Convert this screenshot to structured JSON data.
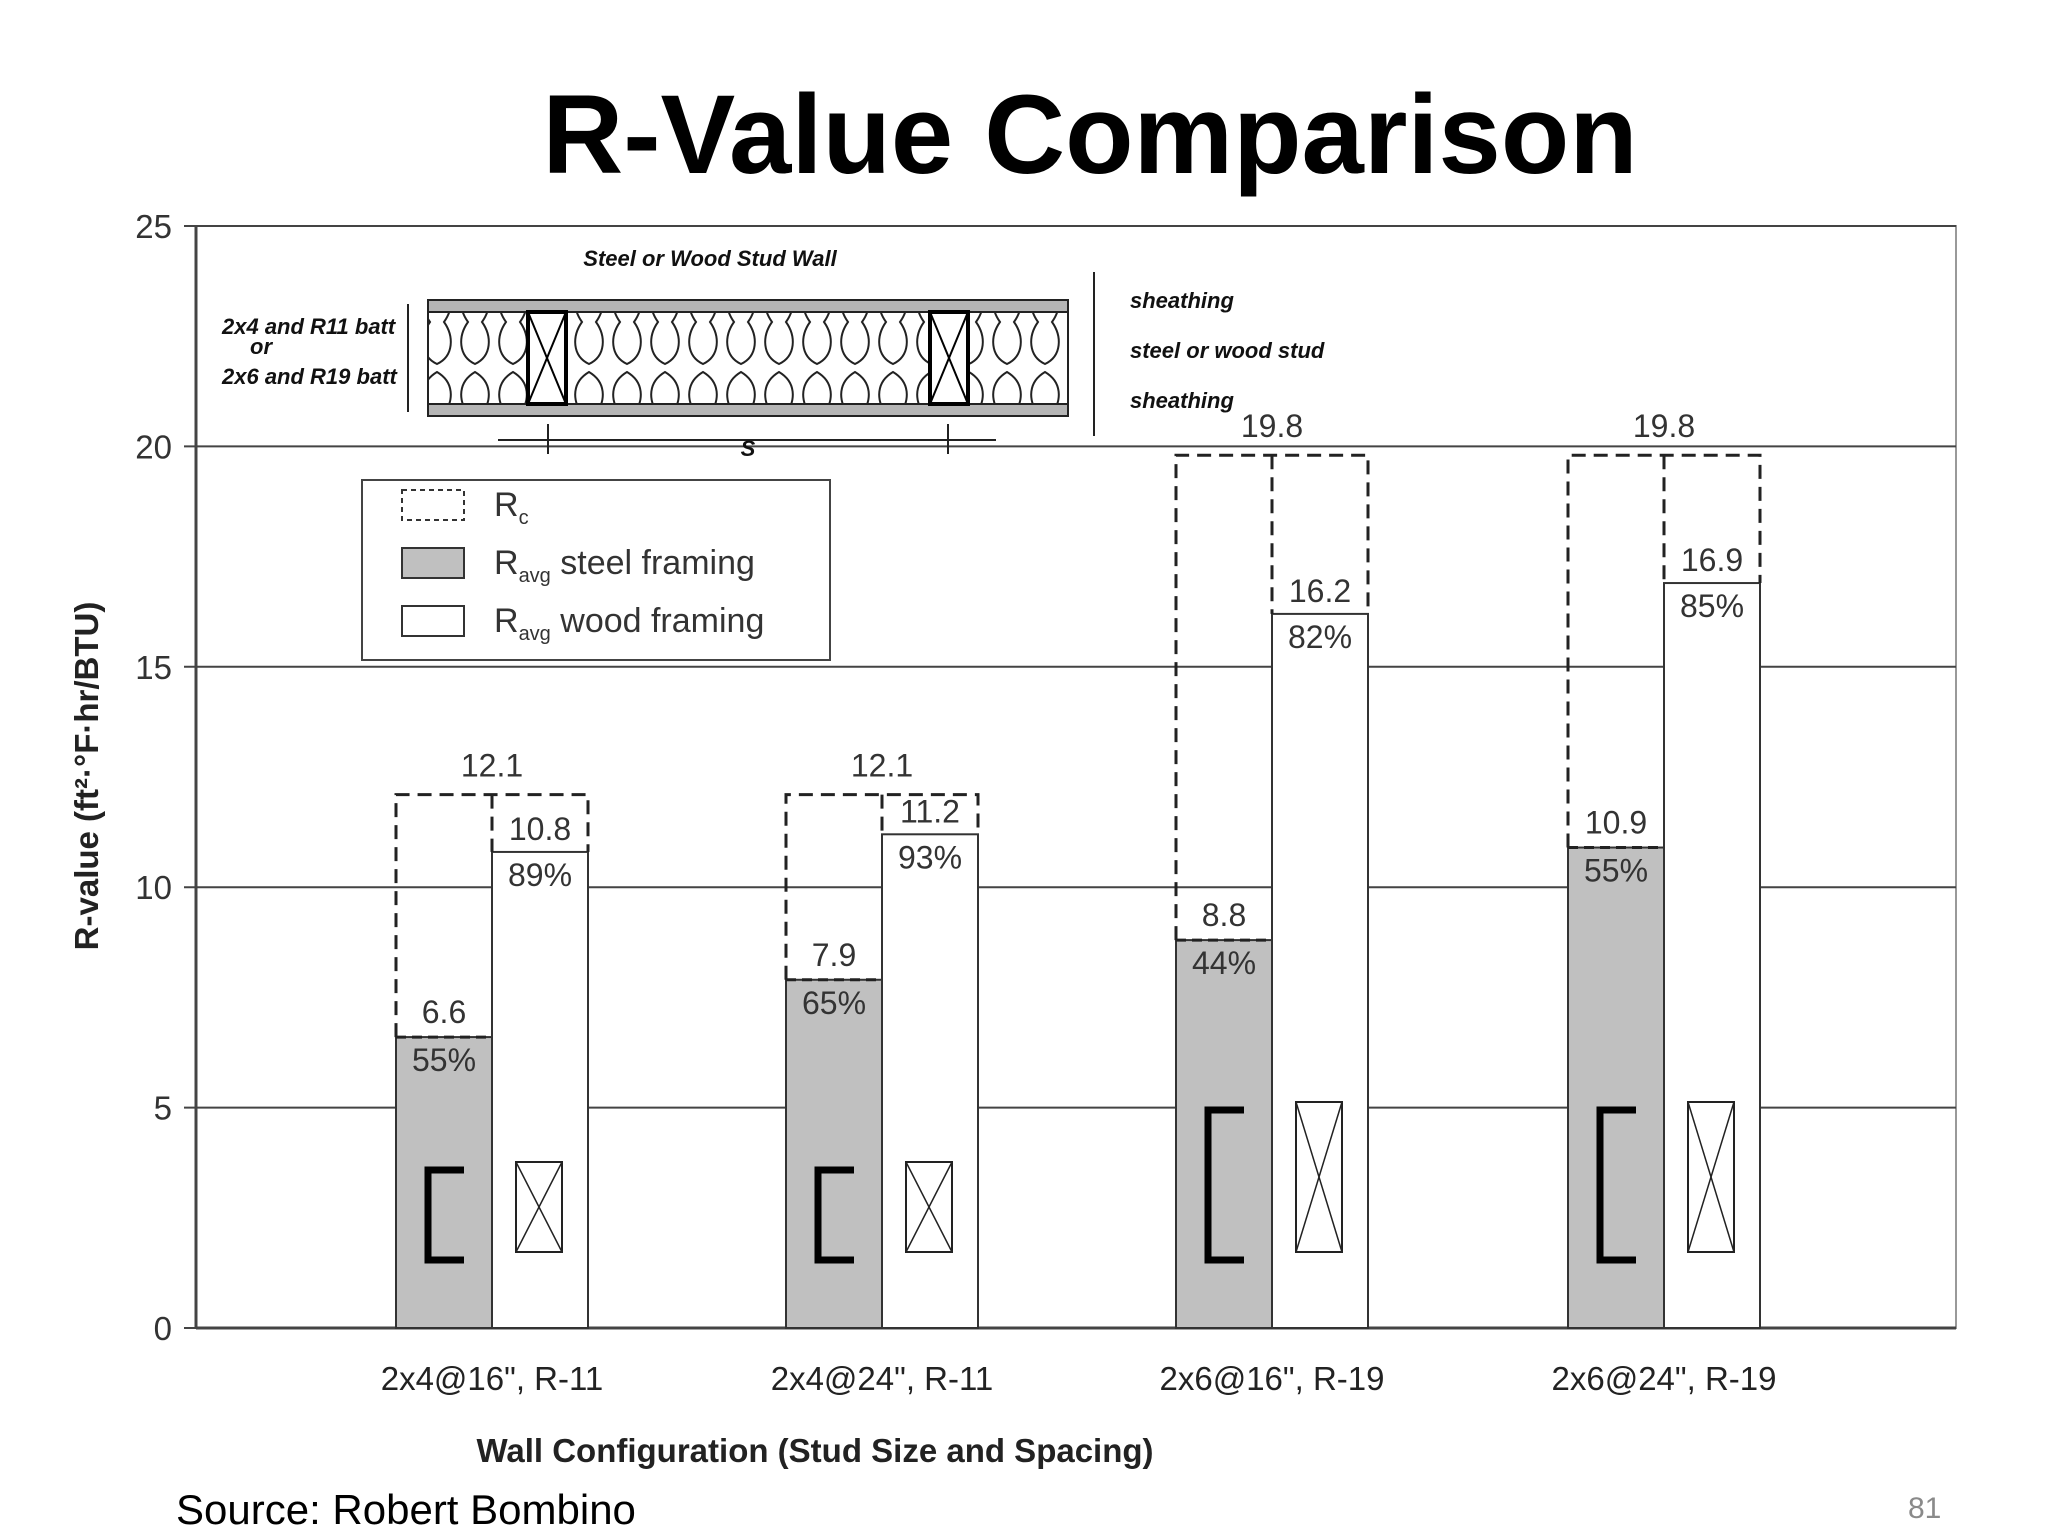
{
  "slide": {
    "title": "R-Value Comparison",
    "source": "Source: Robert Bombino",
    "page_number": "81"
  },
  "chart_data": {
    "type": "bar",
    "xlabel": "Wall Configuration (Stud Size and Spacing)",
    "ylabel": "R-value (ft²·°F·hr/BTU)",
    "ylim": [
      0,
      25
    ],
    "yticks": [
      "0",
      "5",
      "10",
      "15",
      "20",
      "25"
    ],
    "grid": true,
    "legend_position": "top-left",
    "legend": [
      {
        "id": "rc",
        "base": "R",
        "sub": "c",
        "text": ""
      },
      {
        "id": "steel",
        "base": "R",
        "sub": "avg",
        "text": " steel framing"
      },
      {
        "id": "wood",
        "base": "R",
        "sub": "avg",
        "text": " wood framing"
      }
    ],
    "categories": [
      "2x4@16\", R-11",
      "2x4@24\", R-11",
      "2x6@16\", R-19",
      "2x6@24\", R-19"
    ],
    "series": [
      {
        "name": "Rc",
        "values": [
          12.1,
          12.1,
          19.8,
          19.8
        ],
        "labels": [
          "12.1",
          "12.1",
          "19.8",
          "19.8"
        ]
      },
      {
        "name": "Ravg steel framing",
        "values": [
          6.6,
          7.9,
          8.8,
          10.9
        ],
        "labels": [
          "6.6",
          "7.9",
          "8.8",
          "10.9"
        ],
        "percent_labels": [
          "55%",
          "65%",
          "44%",
          "55%"
        ]
      },
      {
        "name": "Ravg wood framing",
        "values": [
          10.8,
          11.2,
          16.2,
          16.9
        ],
        "labels": [
          "10.8",
          "11.2",
          "16.2",
          "16.9"
        ],
        "percent_labels": [
          "89%",
          "93%",
          "82%",
          "85%"
        ]
      }
    ],
    "colors": {
      "steel": "#c0c0c0",
      "wood": "#ffffff",
      "grid": "#444444"
    },
    "inset_diagram": {
      "title": "Steel or Wood Stud Wall",
      "left_label_1": "2x4 and R11 batt",
      "left_label_or": "or",
      "left_label_2": "2x6 and R19 batt",
      "right_label_top": "sheathing",
      "right_label_mid": "steel or wood stud",
      "right_label_bottom": "sheathing",
      "spacing_label": "S"
    }
  }
}
